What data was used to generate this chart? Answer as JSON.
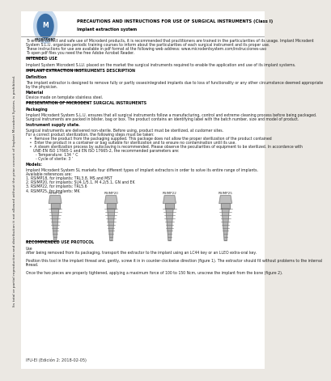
{
  "bg_color": "#ebe8e3",
  "page_bg": "#ffffff",
  "title_line1": "PRECAUTIONS AND INSTRUCTIONS FOR USE OF SURGICAL INSTRUMENTS (Class I)",
  "title_line2": "Implant extraction system",
  "sidebar_text": "Its total or partial reproduction and distribution it not allowed without the prior consent of Implant Microdent System, is prohibited.",
  "body_sections": [
    {
      "text": "To ensure correct and safe use of Microdent products, it is recommended that practitioners are trained in the particularities of its usage. Implant Microdent\nSystem S.L.U. organizes periodic training courses to inform about the particularities of each surgical instrument and its proper use.\nThese instructions for use are available in pdf format at the following web address: www.microdentsystem.com/instrucciones-uso\nTo open pdf files you need the free Adobe Acrobat Reader.",
      "style": "normal"
    },
    {
      "text": "INTENDED USE",
      "style": "underline_bold"
    },
    {
      "text": "Implant System Microdent S.LU. placed on the market the surgical instruments required to enable the application and use of its implant systems.",
      "style": "normal"
    },
    {
      "text": "IMPLANT EXTRACTION INSTRUMENTS DESCRIPTION",
      "style": "underline_bold"
    },
    {
      "text": "Definition",
      "style": "bold"
    },
    {
      "text": "The implant extractor is designed to remove fully or partly osseointegrated implants due to loss of functionality or any other circumstance deemed appropriate\nby the physician.",
      "style": "normal"
    },
    {
      "text": "Material",
      "style": "bold"
    },
    {
      "text": "Device made on template stainless steel.",
      "style": "normal"
    },
    {
      "text": "PRESENTATION OF MICRODENT SURGICAL INSTRUMENTS",
      "style": "underline_bold"
    },
    {
      "text": "Packaging",
      "style": "bold"
    },
    {
      "text": "Implant Microdent System S.L.U. ensures that all surgical instruments follow a manufacturing, control and extreme cleaning process before being packaged.\nSurgical instruments are packed in blister, bag or box. The product contains an identifying label with the batch number, size and model of product.",
      "style": "normal"
    },
    {
      "text": "Instrument supply state.",
      "style": "bold"
    },
    {
      "text": "Surgical instruments are delivered non-sterile. Before using, product must be sterilized, at customer sites.\nFor a correct product sterilization, the following steps must be taken:\n   •  Remove the product from the packaging supplied. This package does not allow the proper sterilization of the product contained\n   •  Enter the product in a container or bag suitable for sterilization and to ensure no contamination until its use.\n   •  A steam sterilization process by autoclaving is recommended. Please observe the peculiarities of equipment to be sterilized. In accordance with\n      UNE-EN ISO 17665-1 and EN ISO 17665-2, the recommended parameters are:\n        - Temperature: 134 ° C\n        - Cycle of sterile: 3 ’",
      "style": "normal"
    },
    {
      "text": "Models:",
      "style": "bold"
    },
    {
      "text": "Implant Microdent System SL markets four different types of implant extractors in order to solve its entire range of implants.\nAvailable references are:\n1. RSIMP18, for implants: TRL3.8, MS and MST\n2. RSIMP20, for implants: SU4.1/5.1, M 4.2/5.1, GN and EK\n3. RSIMP22, for implants: TRL5.6\n4. RSIMP25, for implants: MK",
      "style": "normal"
    }
  ],
  "implant_labels": [
    "RSIMP18",
    "RSIMP20",
    "RSIMP22",
    "RSIMP25"
  ],
  "use_protocol_header": "RECOMMENDED USE PROTOCOL",
  "use_text": "Use\nAfter being removed from its packaging, transport the extractor to the implant using an LC44 key or an LLEO extra-oral key.\n\nPosition this tool in the implant thread and, gently, screw it in in counter-clockwise direction (figure 1). The extractor should fit without problems to the internal\nthread.\n\nOnce the two pieces are properly tightened, applying a maximum force of 100 to 150 Ncm, unscrew the implant from the bone (figure 2).",
  "footer_text": "IFU-EI (Edición 2: 2018-02-05)"
}
